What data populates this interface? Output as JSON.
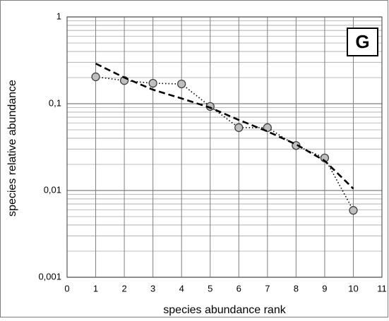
{
  "chart_data": {
    "type": "line",
    "panel_label": "G",
    "x_label": "species  abundance  rank",
    "y_label": "species  relative  abundance",
    "x": [
      1,
      2,
      3,
      4,
      5,
      6,
      7,
      8,
      9,
      10
    ],
    "series": [
      {
        "color": "#000000",
        "marker_color": "#bfbfbf",
        "line_style": "dotted",
        "markers": true,
        "values": [
          0.204,
          0.185,
          0.172,
          0.169,
          0.093,
          0.053,
          0.053,
          0.033,
          0.0237,
          0.0059
        ]
      },
      {
        "color": "#000000",
        "line_style": "dashed",
        "markers": false,
        "values": [
          0.29,
          0.2,
          0.145,
          0.115,
          0.09,
          0.065,
          0.048,
          0.034,
          0.022,
          0.0105
        ]
      }
    ],
    "xlim": [
      0,
      11
    ],
    "xticks": [
      0,
      1,
      2,
      3,
      4,
      5,
      6,
      7,
      8,
      9,
      10,
      11
    ],
    "ylim": [
      0.001,
      1
    ],
    "log_y": true,
    "yticks": [
      {
        "value": 0.001,
        "label": "0,001"
      },
      {
        "value": 0.01,
        "label": "0,01"
      },
      {
        "value": 0.1,
        "label": "0,1"
      },
      1
    ],
    "grid": true,
    "minor_grid": true
  }
}
